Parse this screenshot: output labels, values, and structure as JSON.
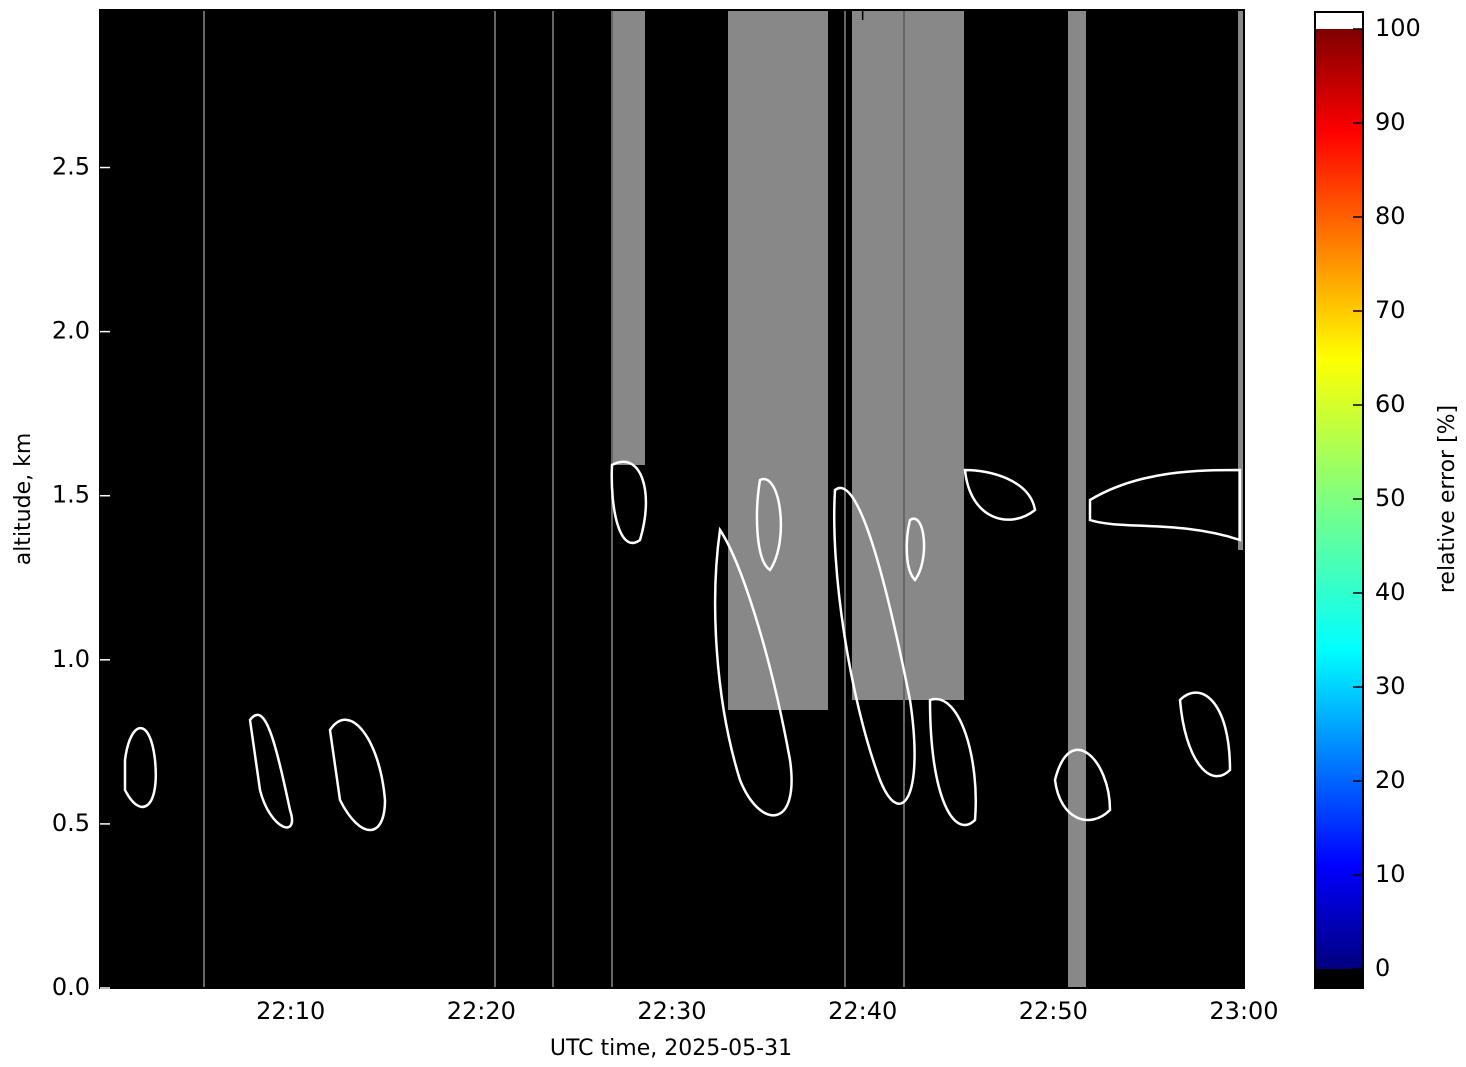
{
  "chart_data": {
    "type": "heatmap",
    "x_label": "UTC time,  2025-05-31",
    "y_label": "altitude, km",
    "xlim": [
      0,
      60
    ],
    "xticks": [
      {
        "value": 10,
        "label": "22:10"
      },
      {
        "value": 20,
        "label": "22:20"
      },
      {
        "value": 30,
        "label": "22:30"
      },
      {
        "value": 40,
        "label": "22:40"
      },
      {
        "value": 50,
        "label": "22:50"
      },
      {
        "value": 60,
        "label": "23:00"
      }
    ],
    "ylim": [
      0,
      2.98
    ],
    "yticks": [
      {
        "value": 0,
        "label": "0.0"
      },
      0.5,
      {
        "value": 1,
        "label": "1.0"
      },
      1.5,
      {
        "value": 2,
        "label": "2.0"
      },
      2.5
    ],
    "colorbar": {
      "label": "relative error [%]",
      "lim": [
        0,
        100
      ],
      "ticks": [
        0,
        10,
        20,
        30,
        40,
        50,
        60,
        70,
        80,
        90,
        100
      ]
    }
  }
}
